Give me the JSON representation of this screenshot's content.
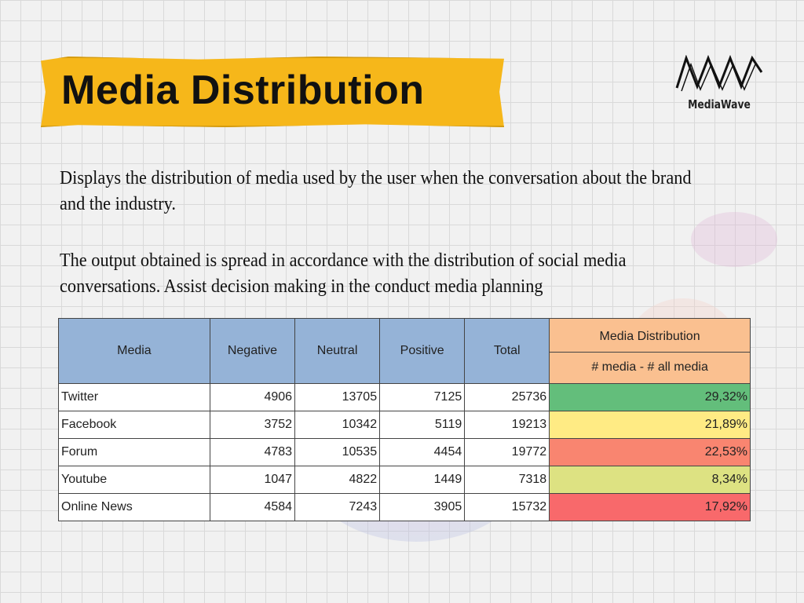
{
  "title": "Media Distribution",
  "logo": {
    "text": "MediaWave",
    "icon": "mediawave-logo-icon"
  },
  "paragraphs": [
    "Displays the distribution of media used by the user when the conversation about the brand and the industry.",
    "The output obtained is spread in accordance with the distribution of social media conversations. Assist decision making in the conduct media planning"
  ],
  "table": {
    "headers": [
      "Media",
      "Negative",
      "Neutral",
      "Positive",
      "Total"
    ],
    "distribution_header": "Media Distribution",
    "distribution_subheader": "# media - # all media",
    "rows": [
      {
        "media": "Twitter",
        "negative": "4906",
        "neutral": "13705",
        "positive": "7125",
        "total": "25736",
        "share": "29,32%",
        "color": "#63be7b"
      },
      {
        "media": "Facebook",
        "negative": "3752",
        "neutral": "10342",
        "positive": "5119",
        "total": "19213",
        "share": "21,89%",
        "color": "#ffeb84"
      },
      {
        "media": "Forum",
        "negative": "4783",
        "neutral": "10535",
        "positive": "4454",
        "total": "19772",
        "share": "22,53%",
        "color": "#f98570"
      },
      {
        "media": "Youtube",
        "negative": "1047",
        "neutral": "4822",
        "positive": "1449",
        "total": "7318",
        "share": "8,34%",
        "color": "#dde282"
      },
      {
        "media": "Online News",
        "negative": "4584",
        "neutral": "7243",
        "positive": "3905",
        "total": "15732",
        "share": "17,92%",
        "color": "#f8696b"
      }
    ]
  }
}
